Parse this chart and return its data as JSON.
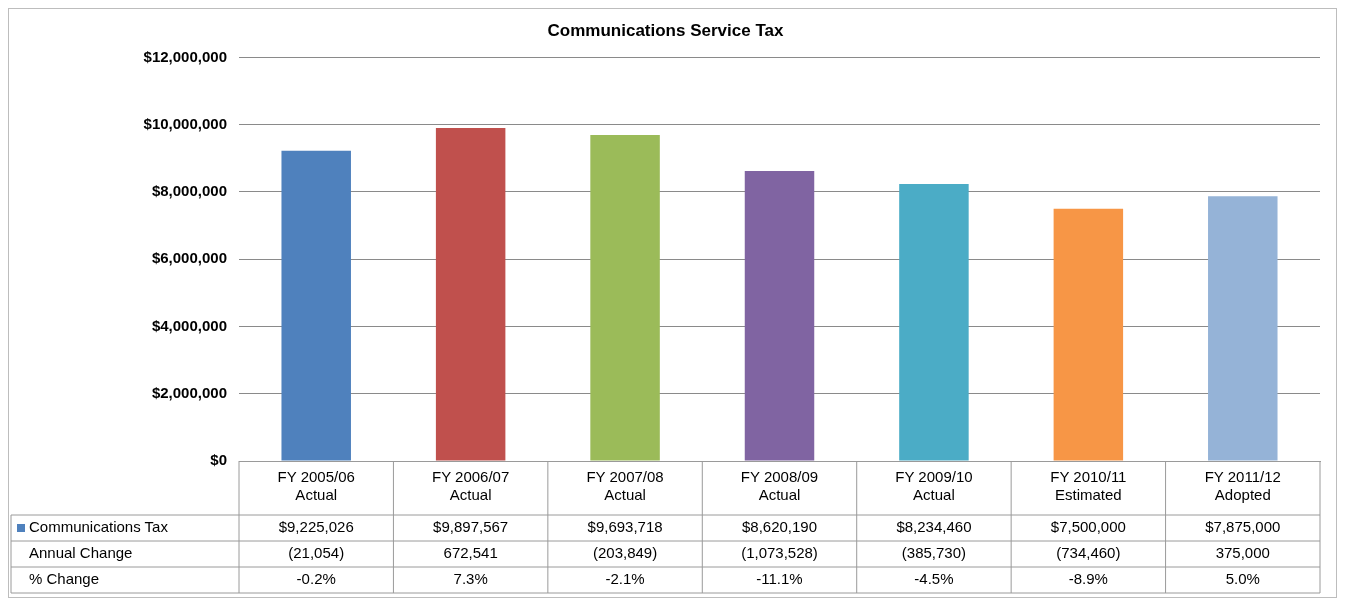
{
  "chart_data": {
    "type": "bar",
    "title": "Communications Service Tax",
    "categories": [
      "FY 2005/06\nActual",
      "FY 2006/07\nActual",
      "FY 2007/08\nActual",
      "FY 2008/09\nActual",
      "FY 2009/10\nActual",
      "FY 2010/11\nEstimated",
      "FY 2011/12\nAdopted"
    ],
    "series": [
      {
        "name": "Communications Tax",
        "colors": [
          "#4f81bd",
          "#c0504d",
          "#9bbb59",
          "#8064a2",
          "#4bacc6",
          "#f79646",
          "#95b3d7"
        ],
        "values": [
          9225026,
          9897567,
          9693718,
          8620190,
          8234460,
          7500000,
          7875000
        ],
        "value_labels": [
          "$9,225,026",
          "$9,897,567",
          "$9,693,718",
          "$8,620,190",
          "$8,234,460",
          "$7,500,000",
          "$7,875,000"
        ]
      }
    ],
    "ylim": [
      0,
      12000000
    ],
    "yticks": [
      {
        "value": 0,
        "label": "$0"
      },
      {
        "value": 2000000,
        "label": "$2,000,000"
      },
      {
        "value": 4000000,
        "label": "$4,000,000"
      },
      {
        "value": 6000000,
        "label": "$6,000,000"
      },
      {
        "value": 8000000,
        "label": "$8,000,000"
      },
      {
        "value": 10000000,
        "label": "$10,000,000"
      },
      {
        "value": 12000000,
        "label": "$12,000,000"
      }
    ],
    "grid": "y",
    "legend": "bottom",
    "annotations": [
      "Annual Change",
      "(21,054)",
      "672,541",
      "(203,849)",
      "(1,073,528)",
      "(385,730)",
      "(734,460)",
      "375,000",
      "% Change",
      "-0.2%",
      "7.3%",
      "-2.1%",
      "-11.1%",
      "-4.5%",
      "-8.9%",
      "5.0%"
    ]
  }
}
